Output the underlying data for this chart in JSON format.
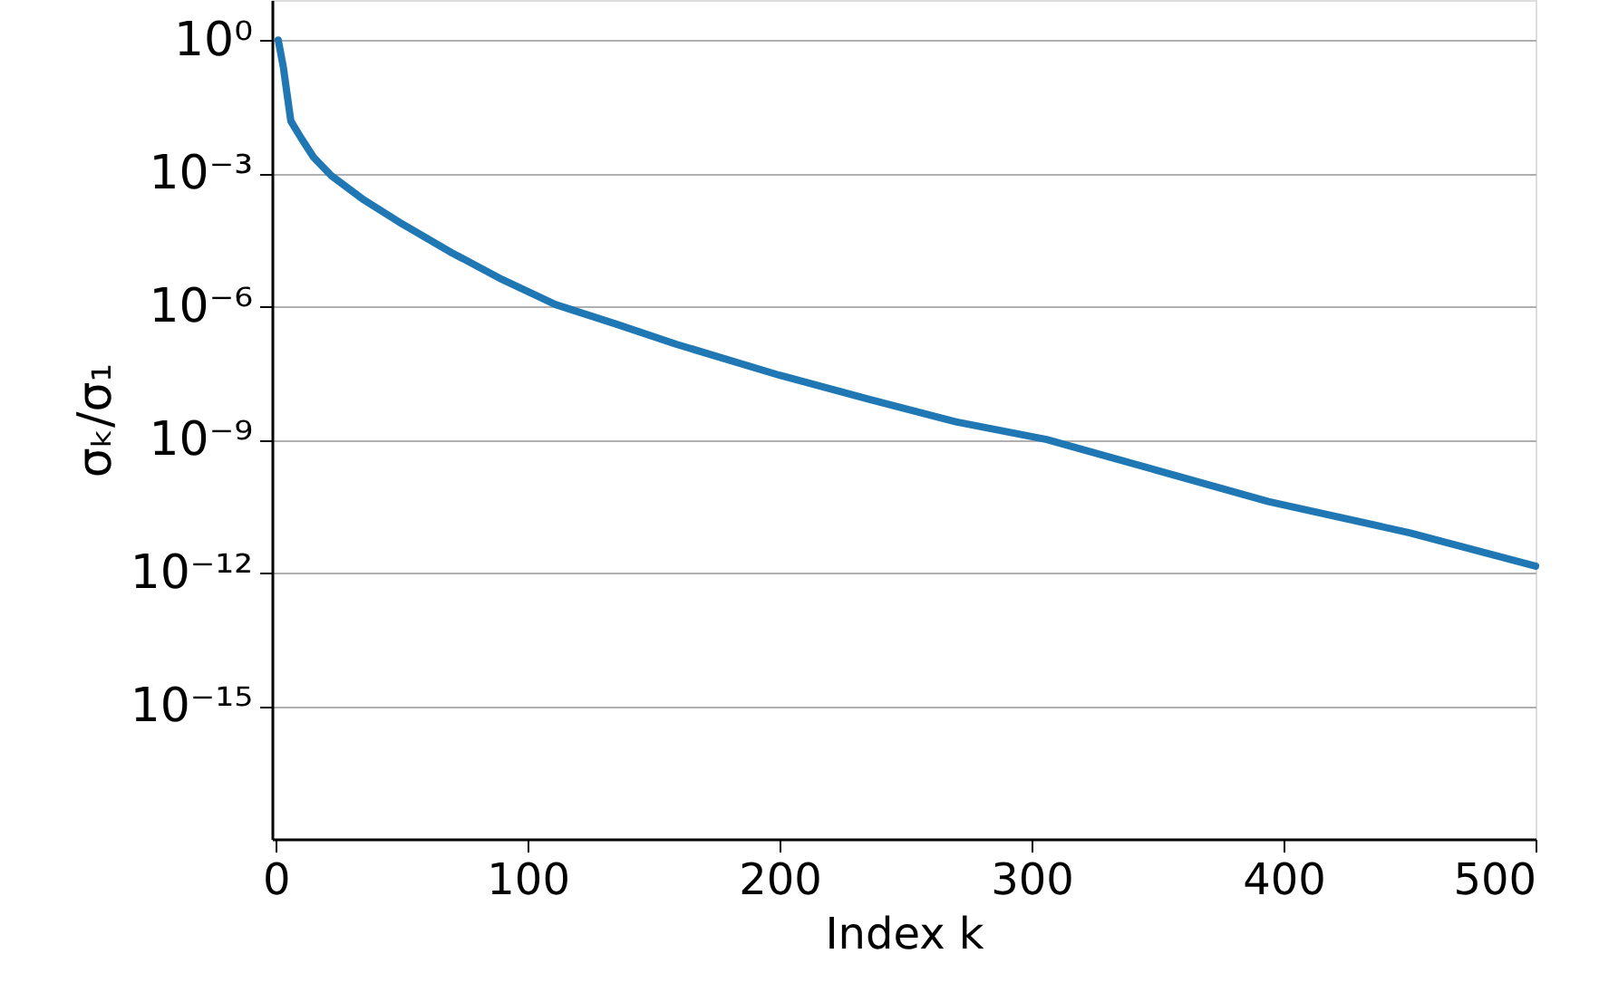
{
  "chart_data": {
    "type": "line",
    "xlabel": "Index k",
    "ylabel": "σₖ/σ₁",
    "x": [
      1,
      3,
      6,
      10,
      15,
      22,
      35,
      49,
      70,
      90,
      111,
      135,
      159,
      200,
      236,
      270,
      306,
      350,
      394,
      450,
      500
    ],
    "series": [
      {
        "color": "#1f77b4",
        "values": [
          1,
          0.25,
          0.015,
          0.0063,
          0.0023,
          0.00089,
          0.00025,
          7.9e-05,
          1.6e-05,
          4e-06,
          1.1e-06,
          4e-07,
          1.4e-07,
          2.8e-08,
          7.9e-09,
          2.5e-09,
          1e-09,
          2e-10,
          4e-11,
          7.9e-12,
          1.4e-12
        ]
      }
    ],
    "log": "y",
    "xlim": [
      -1.5,
      500
    ],
    "ylim": [
      1e-18,
      8
    ],
    "xticks": [
      0,
      100,
      200,
      300,
      400,
      500
    ],
    "yticks": [
      {
        "value": 1,
        "label": "10⁰"
      },
      {
        "value": 0.001,
        "label": "10⁻³"
      },
      {
        "value": 1e-06,
        "label": "10⁻⁶"
      },
      {
        "value": 1e-09,
        "label": "10⁻⁹"
      },
      {
        "value": 1e-12,
        "label": "10⁻¹²"
      },
      {
        "value": 1e-15,
        "label": "10⁻¹⁵"
      }
    ],
    "grid": "y",
    "marker": "none",
    "line_style": "solid"
  }
}
